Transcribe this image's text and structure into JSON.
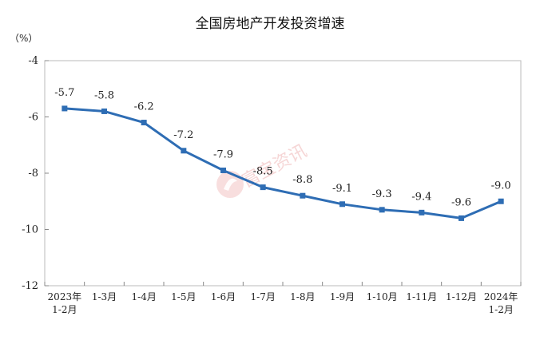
{
  "chart_data": {
    "type": "line",
    "title": "全国房地产开发投资增速",
    "unit_label": "（%）",
    "categories": [
      [
        "2023年",
        "1-2月"
      ],
      [
        "1-3月"
      ],
      [
        "1-4月"
      ],
      [
        "1-5月"
      ],
      [
        "1-6月"
      ],
      [
        "1-7月"
      ],
      [
        "1-8月"
      ],
      [
        "1-9月"
      ],
      [
        "1-10月"
      ],
      [
        "1-11月"
      ],
      [
        "1-12月"
      ],
      [
        "2024年",
        "1-2月"
      ]
    ],
    "series": [
      {
        "values": [
          -5.7,
          -5.8,
          -6.2,
          -7.2,
          -7.9,
          -8.5,
          -8.8,
          -9.1,
          -9.3,
          -9.4,
          -9.6,
          -9.0
        ],
        "labels": [
          "-5.7",
          "-5.8",
          "-6.2",
          "-7.2",
          "-7.9",
          "-8.5",
          "-8.8",
          "-9.1",
          "-9.3",
          "-9.4",
          "-9.6",
          "-9.0"
        ],
        "color": "#2e6db4"
      }
    ],
    "ylim": [
      -12,
      -4
    ],
    "yticks": [
      -4,
      -6,
      -8,
      -10,
      -12
    ],
    "ytick_labels": [
      "-4",
      "-6",
      "-8",
      "-10",
      "-12"
    ],
    "grid": false
  },
  "watermark": {
    "text": "富宝资讯",
    "color": "#e8a8a8"
  }
}
